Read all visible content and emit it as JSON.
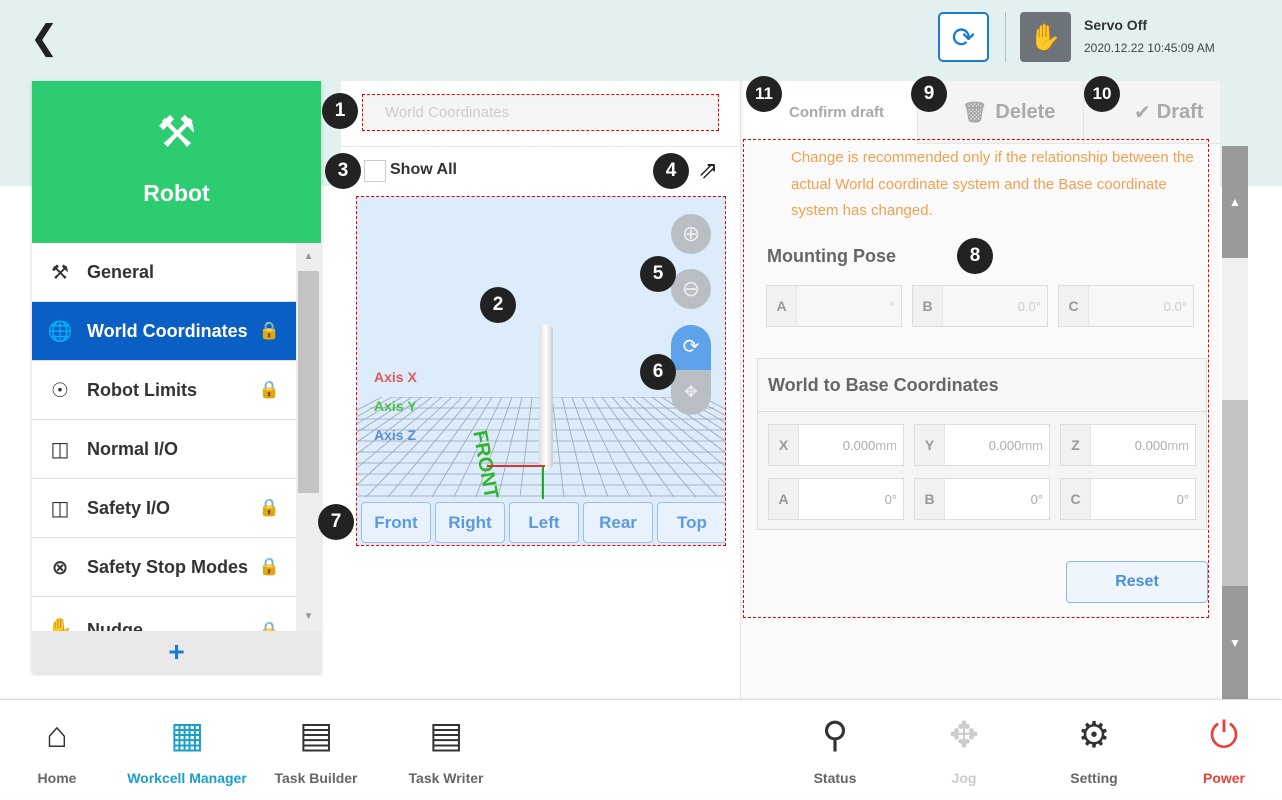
{
  "header": {
    "back_icon": "chevron-left-icon",
    "refresh_icon": "refresh-icon",
    "servo_icon": "hand-icon",
    "servo_status": "Servo Off",
    "datetime": "2020.12.22 10:45:09 AM"
  },
  "sidebar": {
    "title": "Robot",
    "add_label": "+",
    "items": [
      {
        "label": "General",
        "icon": "robot-arm-icon",
        "locked": false
      },
      {
        "label": "World Coordinates",
        "icon": "globe-icon",
        "locked": true,
        "selected": true
      },
      {
        "label": "Robot Limits",
        "icon": "limits-icon",
        "locked": true
      },
      {
        "label": "Normal I/O",
        "icon": "io-icon",
        "locked": false
      },
      {
        "label": "Safety I/O",
        "icon": "io-icon",
        "locked": true
      },
      {
        "label": "Safety Stop Modes",
        "icon": "stop-icon",
        "locked": true
      },
      {
        "label": "Nudge",
        "icon": "nudge-icon",
        "locked": true
      }
    ]
  },
  "middle": {
    "name_placeholder": "World Coordinates",
    "show_all": "Show All",
    "axis_x": "Axis X",
    "axis_y": "Axis Y",
    "axis_z": "Axis Z",
    "front_label": "FRONT",
    "view_buttons": [
      "Front",
      "Right",
      "Left",
      "Rear",
      "Top"
    ]
  },
  "tabs": {
    "confirm": "Confirm draft",
    "delete": "Delete",
    "draft": "Draft"
  },
  "form": {
    "warning": "Change is recommended only if the relationship between the actual World coordinate system and the Base coordinate system has changed.",
    "mounting_title": "Mounting Pose",
    "mounting": [
      {
        "k": "A",
        "v": "°"
      },
      {
        "k": "B",
        "v": "0.0°"
      },
      {
        "k": "C",
        "v": "0.0°"
      }
    ],
    "wb_title": "World to Base Coordinates",
    "wb": [
      {
        "k": "X",
        "v": "0.000",
        "u": "mm"
      },
      {
        "k": "Y",
        "v": "0.000",
        "u": "mm"
      },
      {
        "k": "Z",
        "v": "0.000",
        "u": "mm"
      },
      {
        "k": "A",
        "v": "0°",
        "u": ""
      },
      {
        "k": "B",
        "v": "0°",
        "u": ""
      },
      {
        "k": "C",
        "v": "0°",
        "u": ""
      }
    ],
    "reset": "Reset"
  },
  "badges": [
    "1",
    "2",
    "3",
    "4",
    "5",
    "6",
    "7",
    "8",
    "9",
    "10",
    "11"
  ],
  "bottom_nav": [
    {
      "label": "Home",
      "icon": "home-icon"
    },
    {
      "label": "Workcell Manager",
      "icon": "workcell-icon",
      "active": true
    },
    {
      "label": "Task Builder",
      "icon": "task-builder-icon"
    },
    {
      "label": "Task Writer",
      "icon": "task-writer-icon"
    },
    {
      "label": "Status",
      "icon": "status-icon"
    },
    {
      "label": "Jog",
      "icon": "jog-icon",
      "disabled": true
    },
    {
      "label": "Setting",
      "icon": "gear-icon"
    },
    {
      "label": "Power",
      "icon": "power-icon"
    }
  ],
  "colors": {
    "accent": "#0a5fc4",
    "sidebar_header": "#2ecc71",
    "warning": "#f0a150",
    "power": "#e8413a",
    "active_nav": "#1aa0c8"
  }
}
